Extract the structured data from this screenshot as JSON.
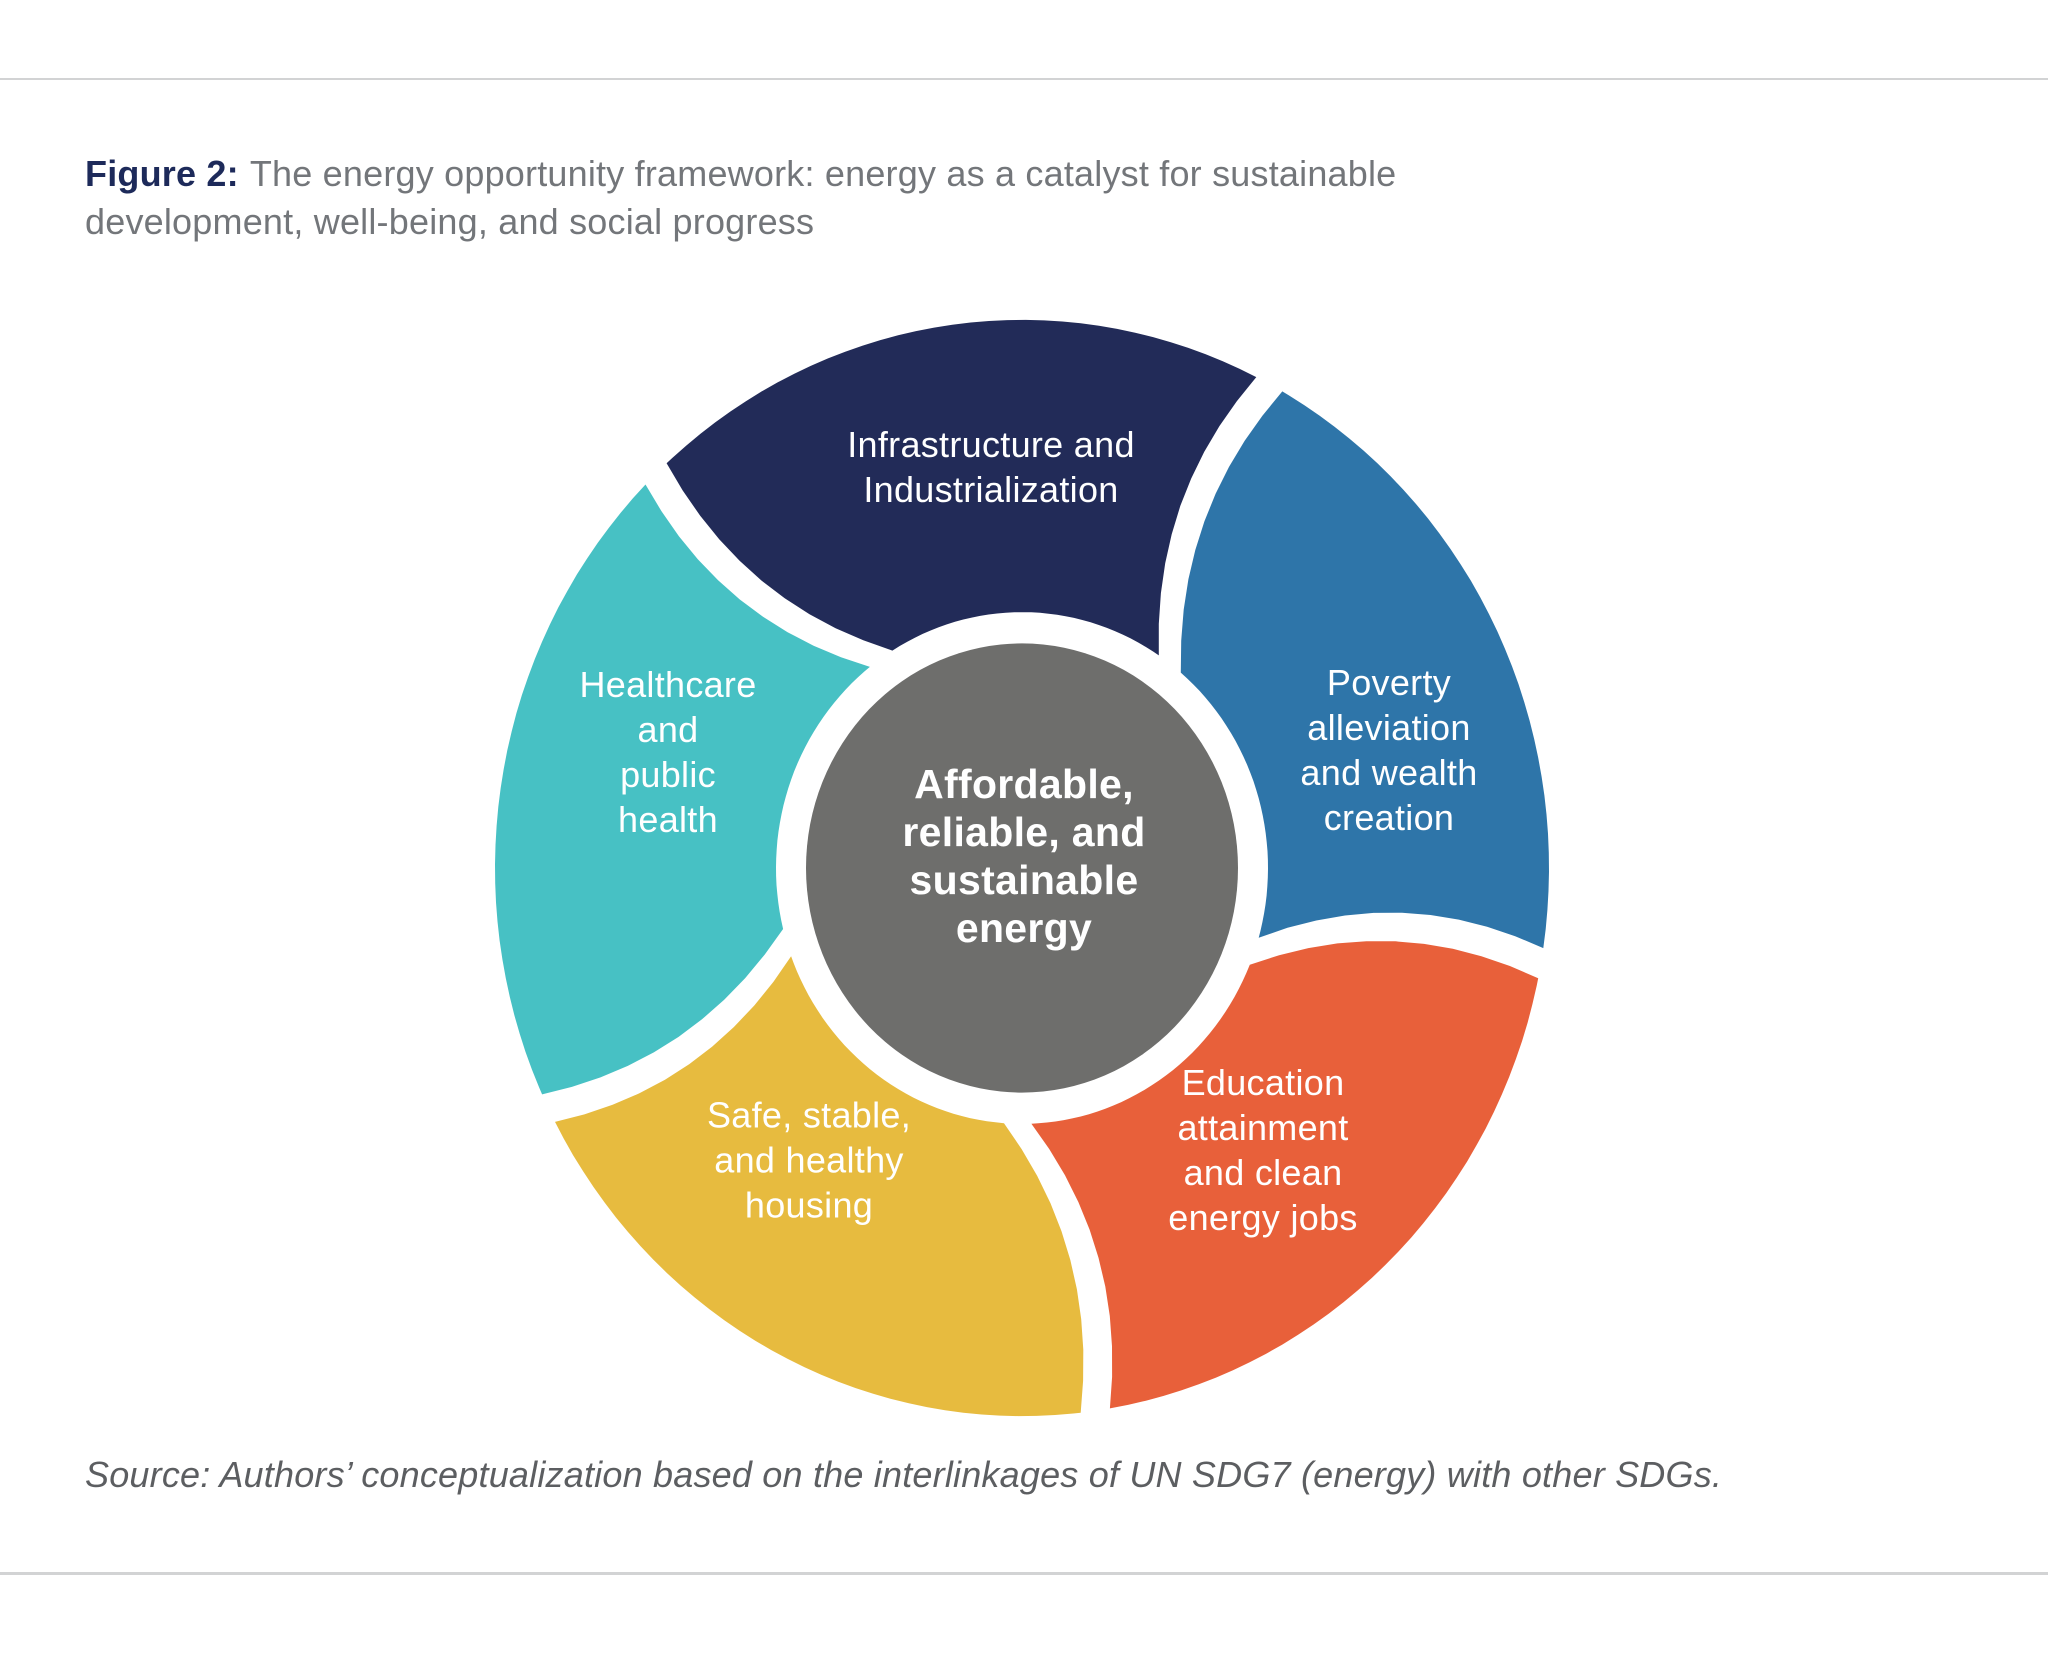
{
  "figure": {
    "label": "Figure 2:",
    "caption_lines": [
      "The energy opportunity framework: energy as a catalyst for sustainable",
      "development, well-being, and social progress"
    ]
  },
  "wheel": {
    "center": {
      "label_lines": [
        "Affordable,",
        "reliable, and",
        "sustainable",
        "energy"
      ],
      "color": "#6e6e6c",
      "text_color": "#ffffff"
    },
    "segments": [
      {
        "id": "infrastructure",
        "label_lines": [
          "Infrastructure and",
          "Industrialization"
        ],
        "color": "#222b58"
      },
      {
        "id": "poverty",
        "label_lines": [
          "Poverty",
          "alleviation",
          "and wealth",
          "creation"
        ],
        "color": "#2e75a9"
      },
      {
        "id": "education",
        "label_lines": [
          "Education",
          "attainment",
          "and clean",
          "energy jobs"
        ],
        "color": "#e8603a"
      },
      {
        "id": "housing",
        "label_lines": [
          "Safe, stable,",
          "and healthy",
          "housing"
        ],
        "color": "#e7bb3f"
      },
      {
        "id": "healthcare",
        "label_lines": [
          "Healthcare",
          "and",
          "public",
          "health"
        ],
        "color": "#47c1c4"
      }
    ]
  },
  "source_note": "Source: Authors’ conceptualization based on the interlinkages of UN SDG7 (energy) with other SDGs."
}
